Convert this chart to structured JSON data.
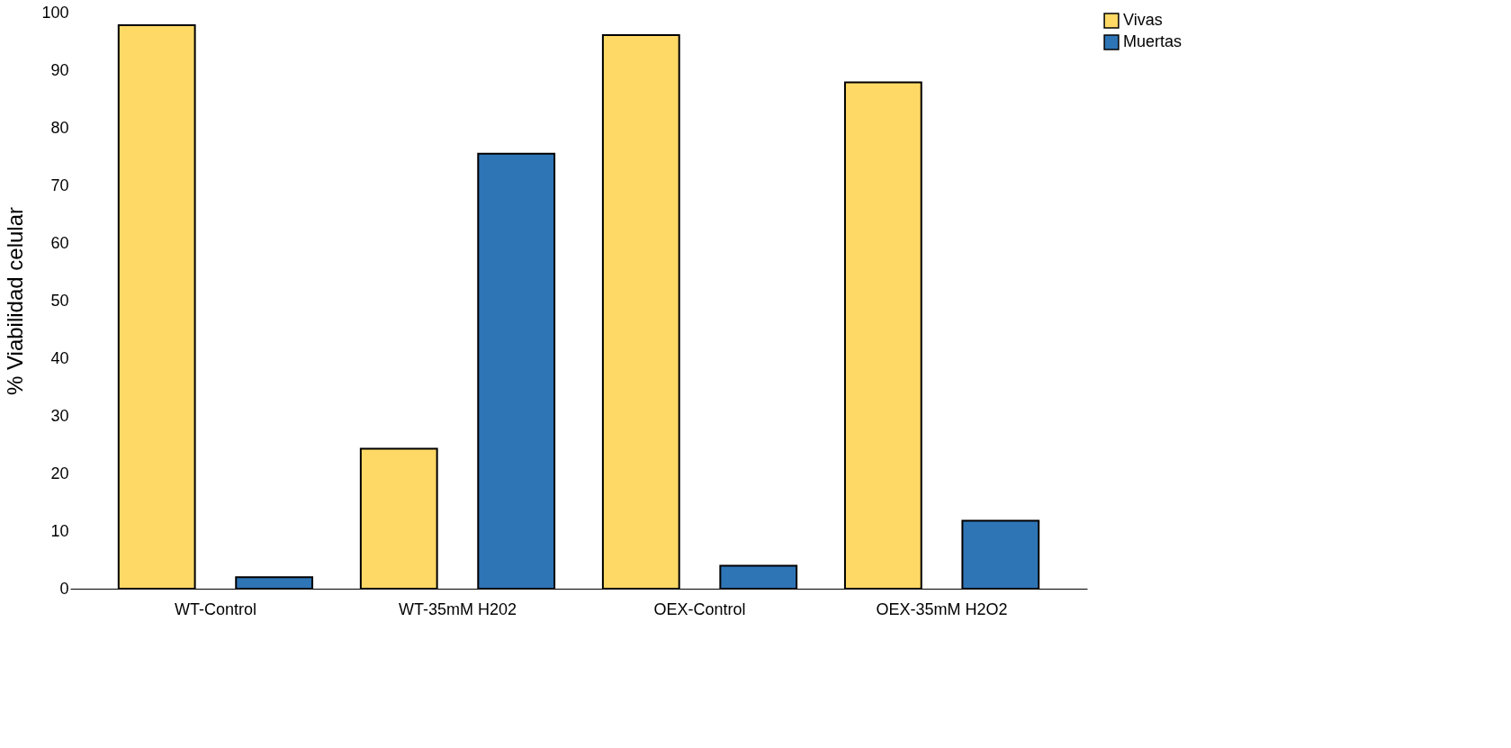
{
  "chart_data": {
    "type": "bar",
    "ylabel": "% Viabilidad celular",
    "categories": [
      "WT-Control",
      "WT-35mM H202",
      "OEX-Control",
      "OEX-35mM H2O2"
    ],
    "series": [
      {
        "name": "Vivas",
        "color": "#ffd966",
        "values": [
          97.8,
          24.3,
          96.1,
          87.9
        ]
      },
      {
        "name": "Muertas",
        "color": "#2e75b6",
        "values": [
          2.0,
          75.5,
          4.0,
          11.8
        ]
      }
    ],
    "ylim": [
      0,
      100
    ],
    "yticks": [
      0,
      10,
      20,
      30,
      40,
      50,
      60,
      70,
      80,
      90,
      100
    ],
    "grid": false,
    "legend": "right"
  }
}
